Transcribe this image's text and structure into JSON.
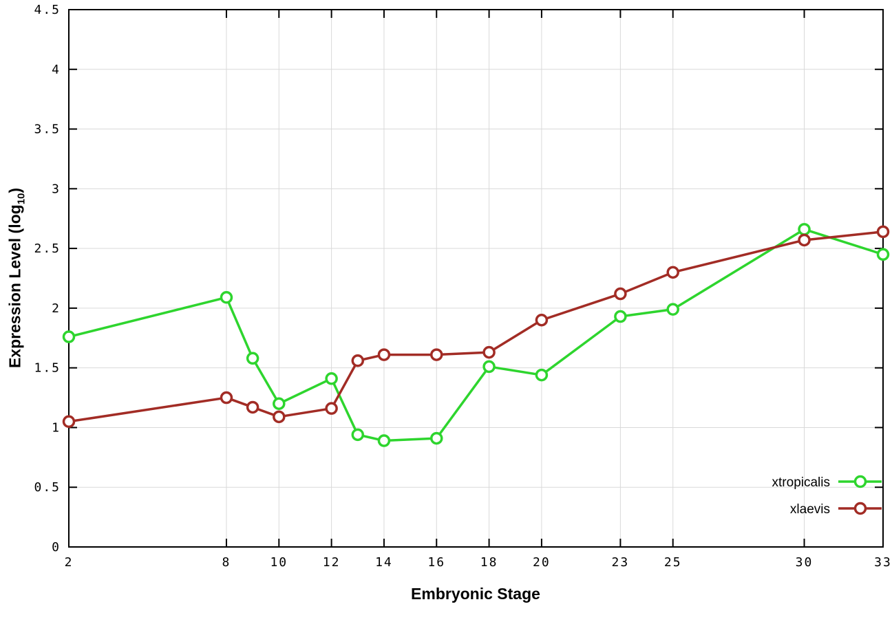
{
  "chart_data": {
    "type": "line",
    "x": [
      2,
      8,
      9,
      10,
      12,
      13,
      14,
      16,
      18,
      20,
      23,
      25,
      30,
      33
    ],
    "series": [
      {
        "name": "xtropicalis",
        "color": "#2ed52e",
        "values": [
          1.76,
          2.09,
          1.58,
          1.2,
          1.41,
          0.94,
          0.89,
          0.91,
          1.51,
          1.44,
          1.93,
          1.99,
          2.66,
          2.45
        ]
      },
      {
        "name": "xlaevis",
        "color": "#a22c25",
        "values": [
          1.05,
          1.25,
          1.17,
          1.09,
          1.16,
          1.56,
          1.61,
          1.61,
          1.63,
          1.9,
          2.12,
          2.3,
          2.57,
          2.64
        ]
      }
    ],
    "title": "",
    "xlabel": "Embryonic Stage",
    "ylabel": "Expression Level (log10)",
    "ylabel_parts": {
      "main": "Expression Level (log",
      "sub": "10",
      "close": ")"
    },
    "xlim": [
      2,
      33
    ],
    "ylim": [
      0,
      4.5
    ],
    "xticks": [
      2,
      8,
      10,
      12,
      14,
      16,
      18,
      20,
      23,
      25,
      30,
      33
    ],
    "xtick_labels": [
      "2",
      "8",
      "10",
      "12",
      "14",
      "16",
      "18",
      "20",
      "23",
      "25",
      "30",
      "33"
    ],
    "yticks": [
      0,
      0.5,
      1,
      1.5,
      2,
      2.5,
      3,
      3.5,
      4,
      4.5
    ],
    "ytick_labels": [
      "0",
      "0.5",
      "1",
      "1.5",
      "2",
      "2.5",
      "3",
      "3.5",
      "4",
      "4.5"
    ],
    "grid": true,
    "legend_position": "bottom-right",
    "legend": [
      {
        "label": "xtropicalis"
      },
      {
        "label": "xlaevis"
      }
    ],
    "colors": {
      "grid": "#d9d9d9",
      "border": "#000000",
      "text": "#000000"
    }
  }
}
